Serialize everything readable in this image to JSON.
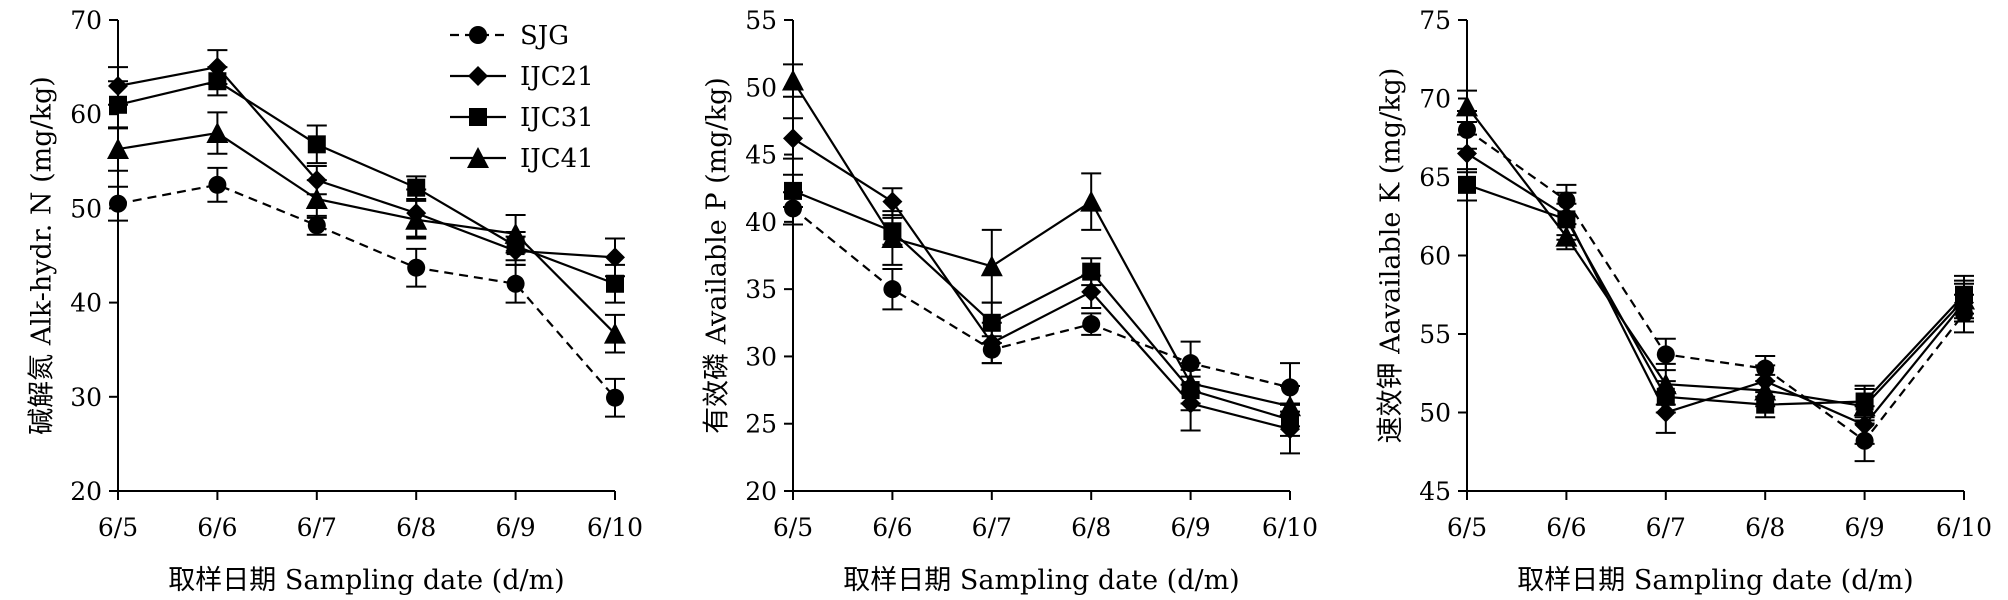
{
  "legend": [
    {
      "name": "SJG",
      "marker": "circle",
      "dash": true
    },
    {
      "name": "IJC21",
      "marker": "diamond",
      "dash": false
    },
    {
      "name": "IJC31",
      "marker": "square",
      "dash": false
    },
    {
      "name": "IJC41",
      "marker": "triangle",
      "dash": false
    }
  ],
  "chart_data": [
    {
      "type": "line",
      "categories": [
        "6/5",
        "6/6",
        "6/7",
        "6/8",
        "6/9",
        "6/10"
      ],
      "xlabel": "取样日期 Sampling date (d/m)",
      "ylabel": "碱解氮 Alk-hydr. N (mg/kg)",
      "ylim": [
        20,
        70
      ],
      "yticks": [
        20,
        30,
        40,
        50,
        60,
        70
      ],
      "legend_position": "top-center",
      "grid": false,
      "series": [
        {
          "name": "SJG",
          "values": [
            50.5,
            52.5,
            48.2,
            43.7,
            42.0,
            29.9
          ],
          "errors": [
            1.8,
            1.8,
            1.0,
            2.0,
            2.0,
            2.0
          ]
        },
        {
          "name": "IJC21",
          "values": [
            63.0,
            65.0,
            53.0,
            49.5,
            45.5,
            44.8
          ],
          "errors": [
            2.0,
            1.8,
            1.5,
            2.5,
            1.5,
            2.0
          ]
        },
        {
          "name": "IJC31",
          "values": [
            61.0,
            63.5,
            56.8,
            52.2,
            46.0,
            42.0
          ],
          "errors": [
            2.5,
            1.5,
            2.0,
            1.2,
            1.5,
            2.0
          ]
        },
        {
          "name": "IJC41",
          "values": [
            56.3,
            58.0,
            51.0,
            48.8,
            47.3,
            36.7
          ],
          "errors": [
            2.3,
            2.2,
            2.0,
            2.0,
            2.0,
            2.0
          ]
        }
      ]
    },
    {
      "type": "line",
      "categories": [
        "6/5",
        "6/6",
        "6/7",
        "6/8",
        "6/9",
        "6/10"
      ],
      "xlabel": "取样日期 Sampling date (d/m)",
      "ylabel": "有效磷 Available P (mg/kg)",
      "ylim": [
        20,
        55
      ],
      "yticks": [
        20,
        25,
        30,
        35,
        40,
        45,
        50,
        55
      ],
      "grid": false,
      "series": [
        {
          "name": "SJG",
          "values": [
            41.0,
            35.0,
            30.5,
            32.4,
            29.5,
            27.7
          ],
          "errors": [
            1.2,
            1.5,
            1.0,
            0.8,
            1.6,
            1.8
          ]
        },
        {
          "name": "IJC21",
          "values": [
            46.2,
            41.5,
            31.0,
            34.8,
            26.5,
            24.6
          ],
          "errors": [
            1.5,
            1.0,
            1.5,
            1.2,
            2.0,
            1.8
          ]
        },
        {
          "name": "IJC31",
          "values": [
            42.3,
            39.3,
            32.5,
            36.3,
            27.5,
            25.3
          ],
          "errors": [
            1.2,
            1.0,
            1.5,
            1.0,
            1.5,
            1.2
          ]
        },
        {
          "name": "IJC41",
          "values": [
            50.5,
            38.8,
            36.7,
            41.5,
            28.0,
            26.3
          ],
          "errors": [
            1.2,
            2.0,
            2.7,
            2.1,
            1.5,
            1.5
          ]
        }
      ]
    },
    {
      "type": "line",
      "categories": [
        "6/5",
        "6/6",
        "6/7",
        "6/8",
        "6/9",
        "6/10"
      ],
      "xlabel": "取样日期 Sampling date (d/m)",
      "ylabel": "速效钾 Aavailable K (mg/kg)",
      "ylim": [
        45,
        75
      ],
      "yticks": [
        45,
        50,
        55,
        60,
        65,
        70,
        75
      ],
      "grid": false,
      "series": [
        {
          "name": "SJG",
          "values": [
            68.0,
            63.5,
            53.7,
            52.8,
            48.2,
            56.3
          ],
          "errors": [
            1.2,
            1.0,
            1.0,
            0.8,
            1.3,
            1.2
          ]
        },
        {
          "name": "IJC21",
          "values": [
            66.5,
            62.5,
            50.0,
            52.0,
            49.2,
            57.0
          ],
          "errors": [
            1.2,
            1.5,
            1.3,
            1.0,
            1.2,
            1.2
          ]
        },
        {
          "name": "IJC31",
          "values": [
            64.5,
            62.3,
            51.0,
            50.5,
            50.7,
            57.5
          ],
          "errors": [
            1.0,
            1.0,
            1.0,
            0.8,
            1.0,
            1.2
          ]
        },
        {
          "name": "IJC41",
          "values": [
            69.5,
            61.2,
            51.8,
            51.4,
            50.4,
            57.2
          ],
          "errors": [
            1.0,
            0.8,
            1.3,
            1.0,
            1.1,
            1.2
          ]
        }
      ]
    }
  ]
}
